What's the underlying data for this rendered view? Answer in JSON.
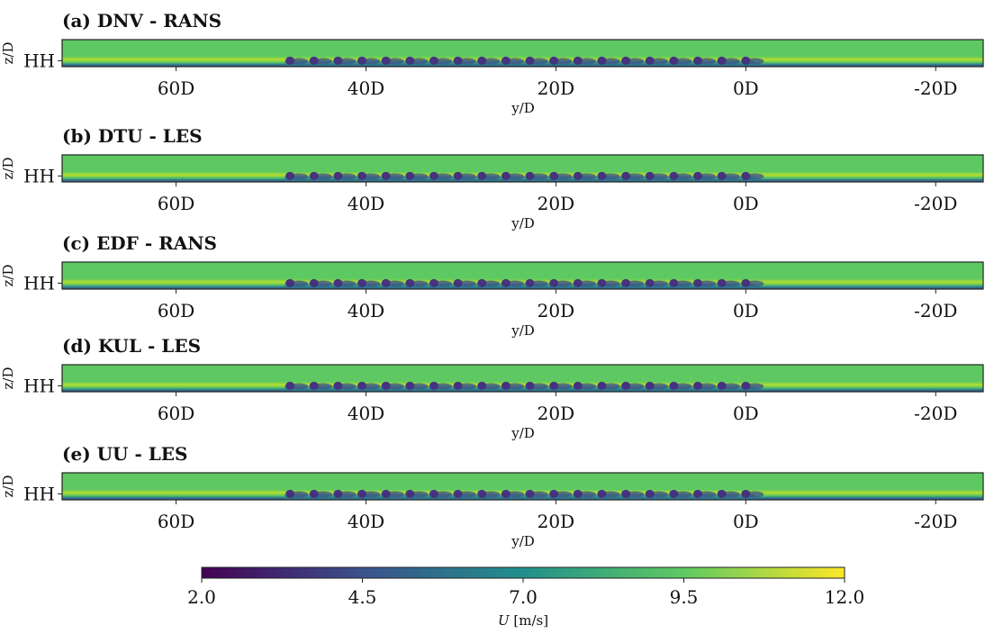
{
  "chart_data": {
    "type": "heatmap",
    "panels": [
      {
        "title": "(a) DNV - RANS",
        "xlabel": "y/D",
        "ylabel": "z/D",
        "ytick_labels": [
          "HH"
        ],
        "xtick_labels": [
          "60D",
          "40D",
          "20D",
          "0D",
          "-20D"
        ],
        "xtick_values": [
          60,
          40,
          20,
          0,
          -20
        ],
        "xlim": [
          72,
          -25
        ],
        "turbine_count": 20,
        "turbine_y_range": [
          48,
          0
        ]
      },
      {
        "title": "(b) DTU - LES",
        "xlabel": "y/D",
        "ylabel": "z/D",
        "ytick_labels": [
          "HH"
        ],
        "xtick_labels": [
          "60D",
          "40D",
          "20D",
          "0D",
          "-20D"
        ],
        "xtick_values": [
          60,
          40,
          20,
          0,
          -20
        ],
        "xlim": [
          72,
          -25
        ],
        "turbine_count": 20,
        "turbine_y_range": [
          48,
          0
        ]
      },
      {
        "title": "(c) EDF - RANS",
        "xlabel": "y/D",
        "ylabel": "z/D",
        "ytick_labels": [
          "HH"
        ],
        "xtick_labels": [
          "60D",
          "40D",
          "20D",
          "0D",
          "-20D"
        ],
        "xtick_values": [
          60,
          40,
          20,
          0,
          -20
        ],
        "xlim": [
          72,
          -25
        ],
        "turbine_count": 20,
        "turbine_y_range": [
          48,
          0
        ]
      },
      {
        "title": "(d) KUL - LES",
        "xlabel": "y/D",
        "ylabel": "z/D",
        "ytick_labels": [
          "HH"
        ],
        "xtick_labels": [
          "60D",
          "40D",
          "20D",
          "0D",
          "-20D"
        ],
        "xtick_values": [
          60,
          40,
          20,
          0,
          -20
        ],
        "xlim": [
          72,
          -25
        ],
        "turbine_count": 20,
        "turbine_y_range": [
          48,
          0
        ]
      },
      {
        "title": "(e) UU - LES",
        "xlabel": "y/D",
        "ylabel": "z/D",
        "ytick_labels": [
          "HH"
        ],
        "xtick_labels": [
          "60D",
          "40D",
          "20D",
          "0D",
          "-20D"
        ],
        "xtick_values": [
          60,
          40,
          20,
          0,
          -20
        ],
        "xlim": [
          72,
          -25
        ],
        "turbine_count": 20,
        "turbine_y_range": [
          48,
          0
        ]
      }
    ],
    "colorbar": {
      "label_symbol": "U",
      "label_unit": "[m/s]",
      "range": [
        2.0,
        12.0
      ],
      "tick_labels": [
        "2.0",
        "4.5",
        "7.0",
        "9.5",
        "12.0"
      ],
      "tick_values": [
        2.0,
        4.5,
        7.0,
        9.5,
        12.0
      ],
      "colormap": "viridis",
      "colors": [
        "#440154",
        "#3b528b",
        "#21908c",
        "#5ec962",
        "#fde725"
      ]
    },
    "field_colors": {
      "freestream": "#5ec962",
      "hub_height_jet": "#b5de2b",
      "surface": "#2a788e",
      "wake": "#3b528b",
      "rotor": "#46327e"
    }
  }
}
